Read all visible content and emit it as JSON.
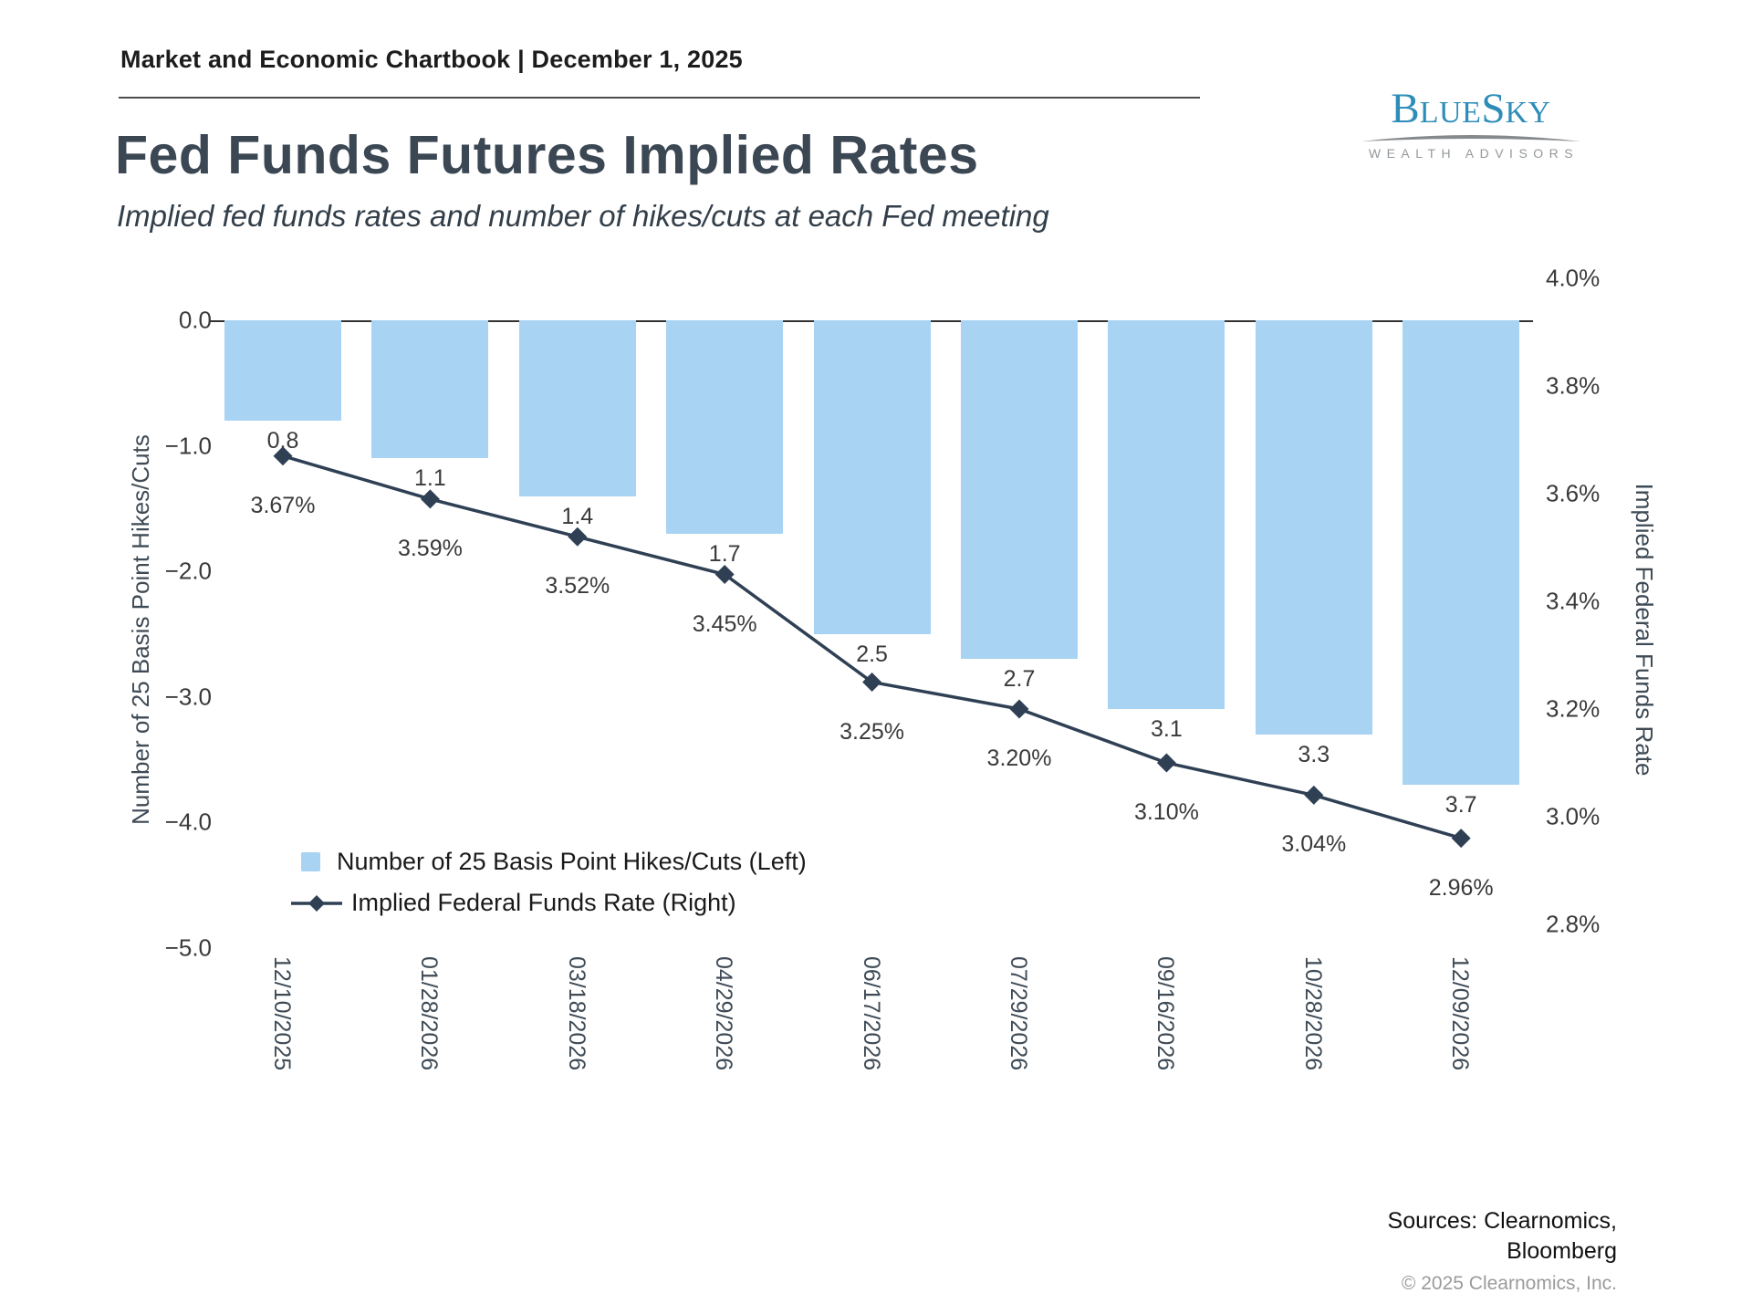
{
  "header": {
    "eyebrow": "Market and Economic Chartbook | December 1, 2025",
    "title": "Fed Funds Futures Implied Rates",
    "subtitle": "Implied fed funds rates and number of hikes/cuts at each Fed meeting"
  },
  "logo": {
    "part1": "B",
    "part2": "LUE",
    "part3": "S",
    "part4": "KY",
    "tagline": "WEALTH ADVISORS"
  },
  "footer": {
    "sources_line1": "Sources: Clearnomics,",
    "sources_line2": "Bloomberg",
    "copyright": "© 2025 Clearnomics, Inc."
  },
  "colors": {
    "bar_fill": "#a9d3f3",
    "line": "#2f4055",
    "axis_line": "#333333",
    "tick_text": "#3a3a3a",
    "logo_blue": "#2e8db8",
    "logo_gray": "#94989b"
  },
  "chart_data": {
    "type": "bar+line combo (dual axis)",
    "categories": [
      "12/10/2025",
      "01/28/2026",
      "03/18/2026",
      "04/29/2026",
      "06/17/2026",
      "07/29/2026",
      "09/16/2026",
      "10/28/2026",
      "12/09/2026"
    ],
    "series": [
      {
        "name": "Number of 25 Basis Point Hikes/Cuts (Left)",
        "type": "bar",
        "axis": "left",
        "values": [
          -0.8,
          -1.1,
          -1.4,
          -1.7,
          -2.5,
          -2.7,
          -3.1,
          -3.3,
          -3.7
        ],
        "labels": [
          "0.8",
          "1.1",
          "1.4",
          "1.7",
          "2.5",
          "2.7",
          "3.1",
          "3.3",
          "3.7"
        ]
      },
      {
        "name": "Implied Federal Funds Rate (Right)",
        "type": "line",
        "axis": "right",
        "values": [
          3.67,
          3.59,
          3.52,
          3.45,
          3.25,
          3.2,
          3.1,
          3.04,
          2.96
        ],
        "labels": [
          "3.67%",
          "3.59%",
          "3.52%",
          "3.45%",
          "3.25%",
          "3.20%",
          "3.10%",
          "3.04%",
          "2.96%"
        ]
      }
    ],
    "left_axis": {
      "label": "Number of 25 Basis Point Hikes/Cuts",
      "tick_labels": [
        "0.0",
        "−1.0",
        "−2.0",
        "−3.0",
        "−4.0",
        "−5.0"
      ],
      "tick_values": [
        0,
        -1,
        -2,
        -3,
        -4,
        -5
      ],
      "range": [
        -5.25,
        0
      ]
    },
    "right_axis": {
      "label": "Implied Federal Funds Rate",
      "tick_labels": [
        "4.0%",
        "3.8%",
        "3.6%",
        "3.4%",
        "3.2%",
        "3.0%",
        "2.8%"
      ],
      "tick_values": [
        4.0,
        3.8,
        3.6,
        3.4,
        3.2,
        3.0,
        2.8
      ],
      "range": [
        2.8,
        4.0
      ]
    },
    "legend": [
      "Number of 25 Basis Point Hikes/Cuts (Left)",
      "Implied Federal Funds Rate (Right)"
    ],
    "grid": false,
    "legend_position": "lower-left inside plot"
  }
}
